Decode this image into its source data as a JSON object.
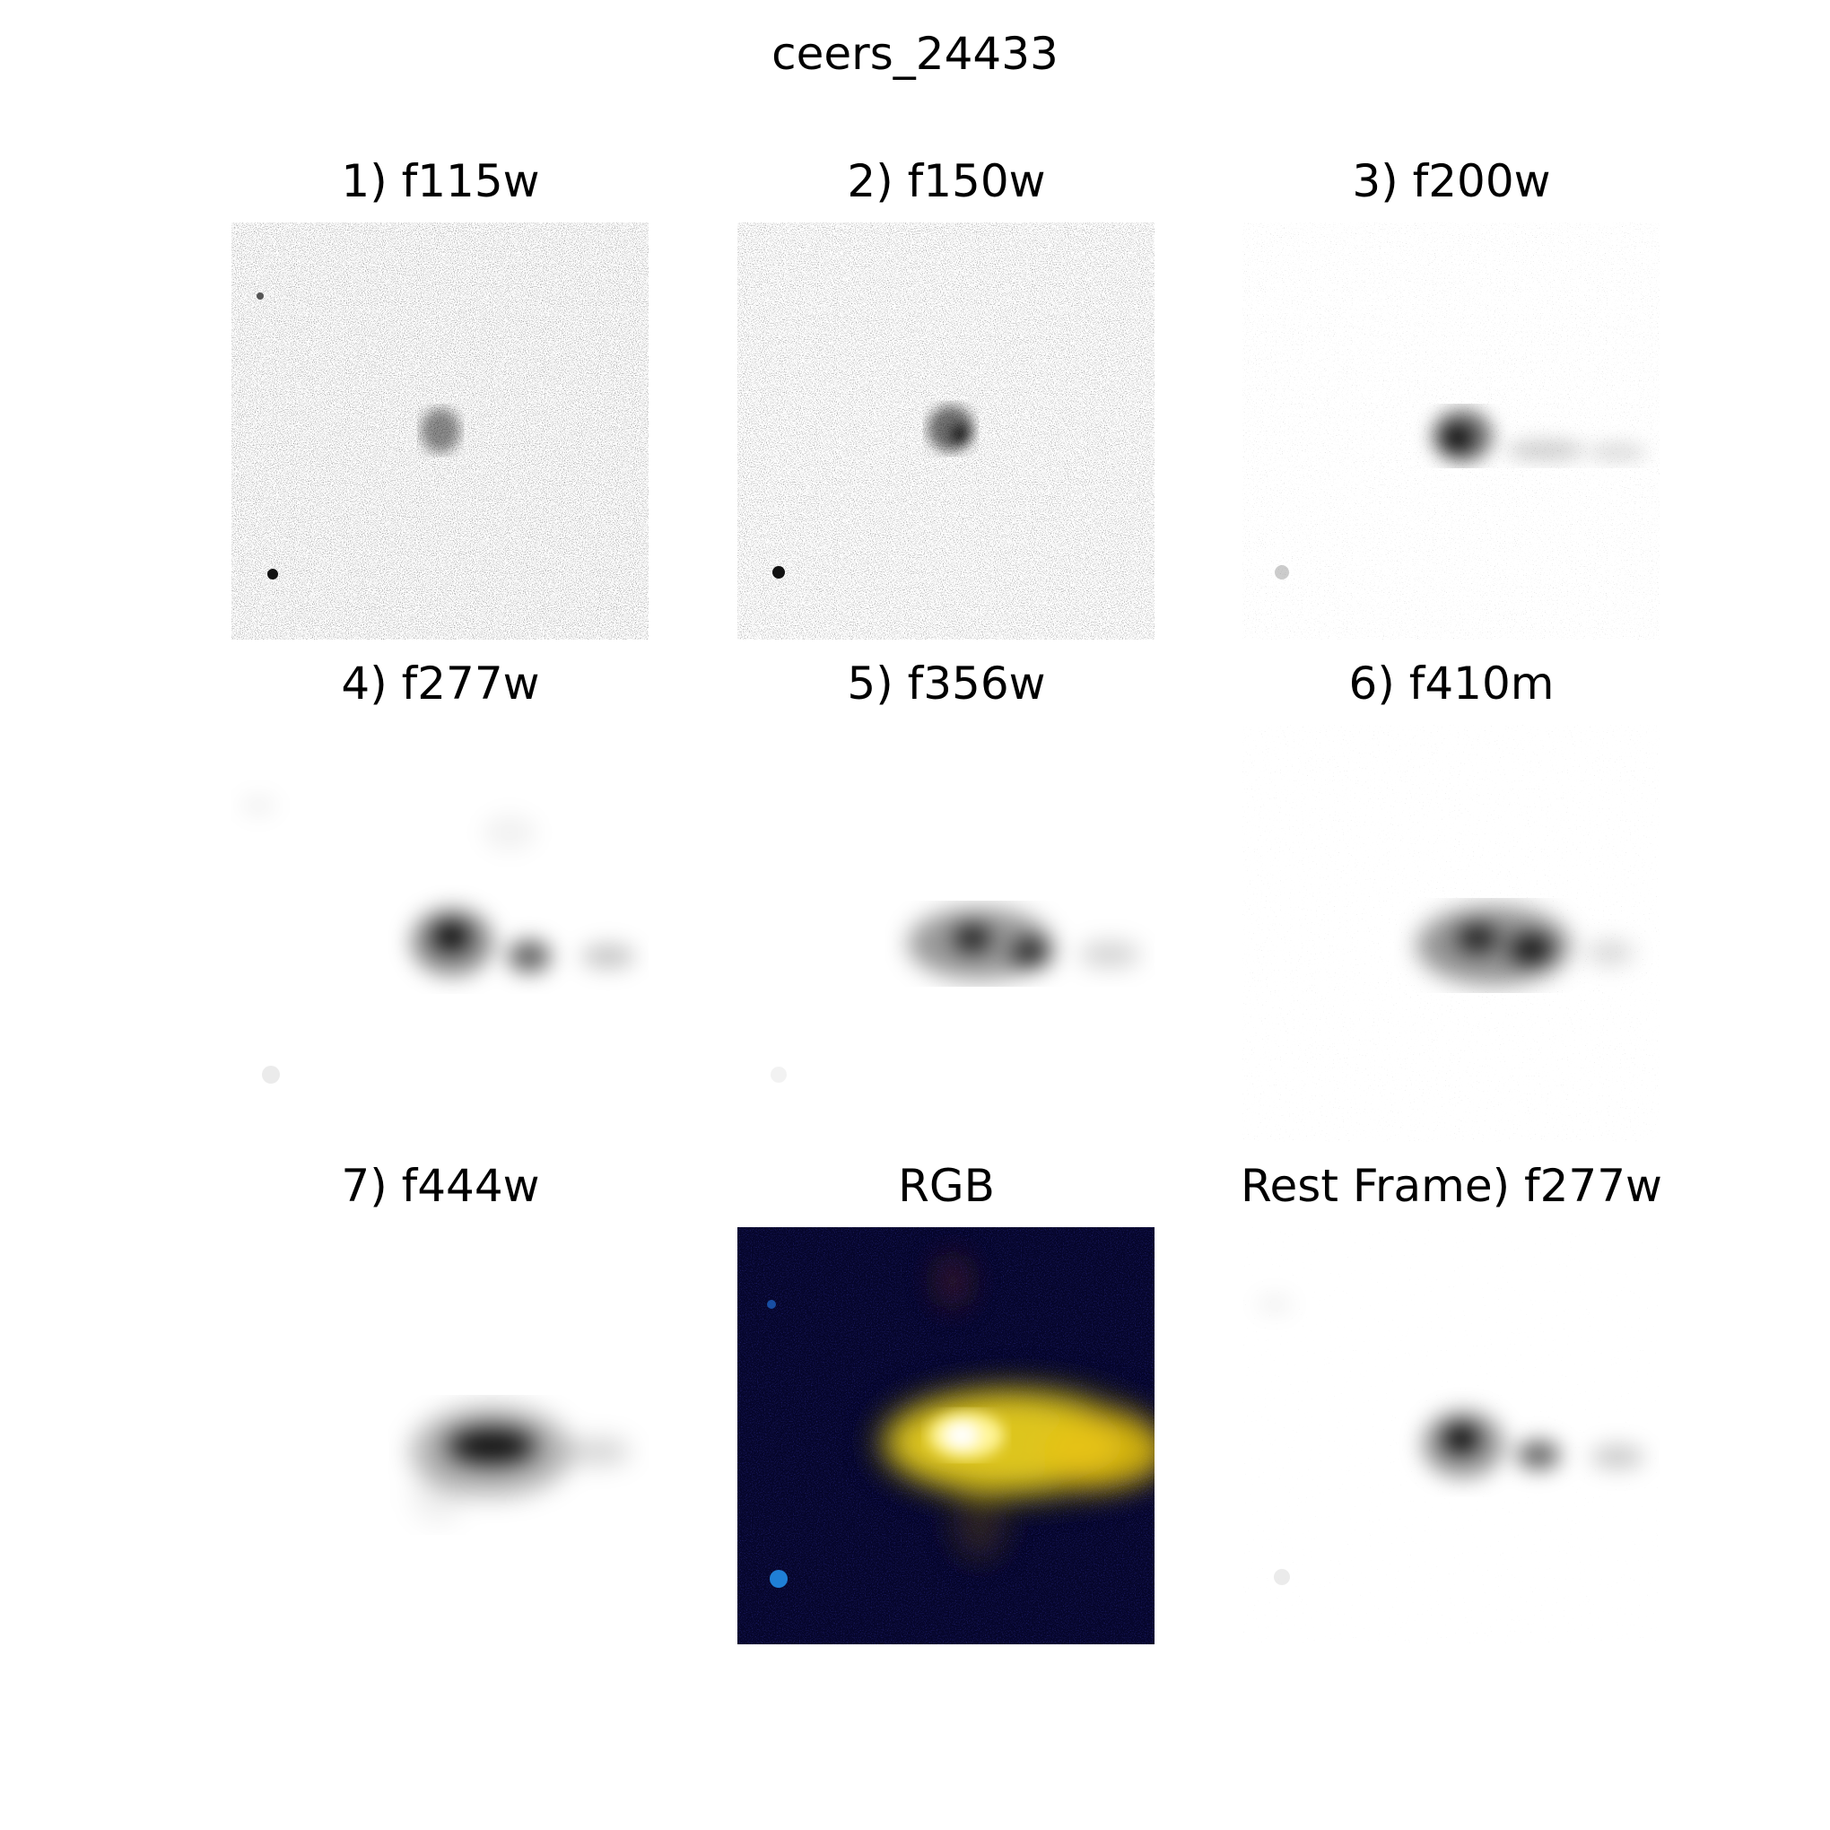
{
  "figure": {
    "title": "ceers_24433"
  },
  "panels": [
    {
      "label": "1) f115w",
      "kind": "grayscale-cutout",
      "filter": "f115w"
    },
    {
      "label": "2) f150w",
      "kind": "grayscale-cutout",
      "filter": "f150w"
    },
    {
      "label": "3) f200w",
      "kind": "grayscale-cutout",
      "filter": "f200w"
    },
    {
      "label": "4) f277w",
      "kind": "grayscale-cutout",
      "filter": "f277w"
    },
    {
      "label": "5) f356w",
      "kind": "grayscale-cutout",
      "filter": "f356w"
    },
    {
      "label": "6) f410m",
      "kind": "grayscale-cutout",
      "filter": "f410m"
    },
    {
      "label": "7) f444w",
      "kind": "grayscale-cutout",
      "filter": "f444w"
    },
    {
      "label": "RGB",
      "kind": "color-composite"
    },
    {
      "label": "Rest Frame) f277w",
      "kind": "grayscale-cutout",
      "filter": "f277w"
    }
  ],
  "colors": {
    "background": "#ffffff",
    "source": "#000000",
    "rgb_background": "#05052a",
    "rgb_core": "#fff59a",
    "rgb_emission": "#f1d61d",
    "rgb_point_source": "#1f7fd6"
  }
}
